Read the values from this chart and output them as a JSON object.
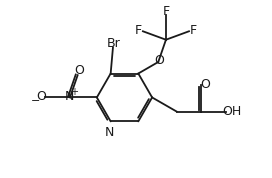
{
  "bg_color": "#ffffff",
  "line_color": "#1a1a1a",
  "lw": 1.3,
  "fig_width": 2.72,
  "fig_height": 1.78,
  "dpi": 100,
  "xlim": [
    -3.5,
    11.0
  ],
  "ylim": [
    -2.0,
    9.5
  ]
}
